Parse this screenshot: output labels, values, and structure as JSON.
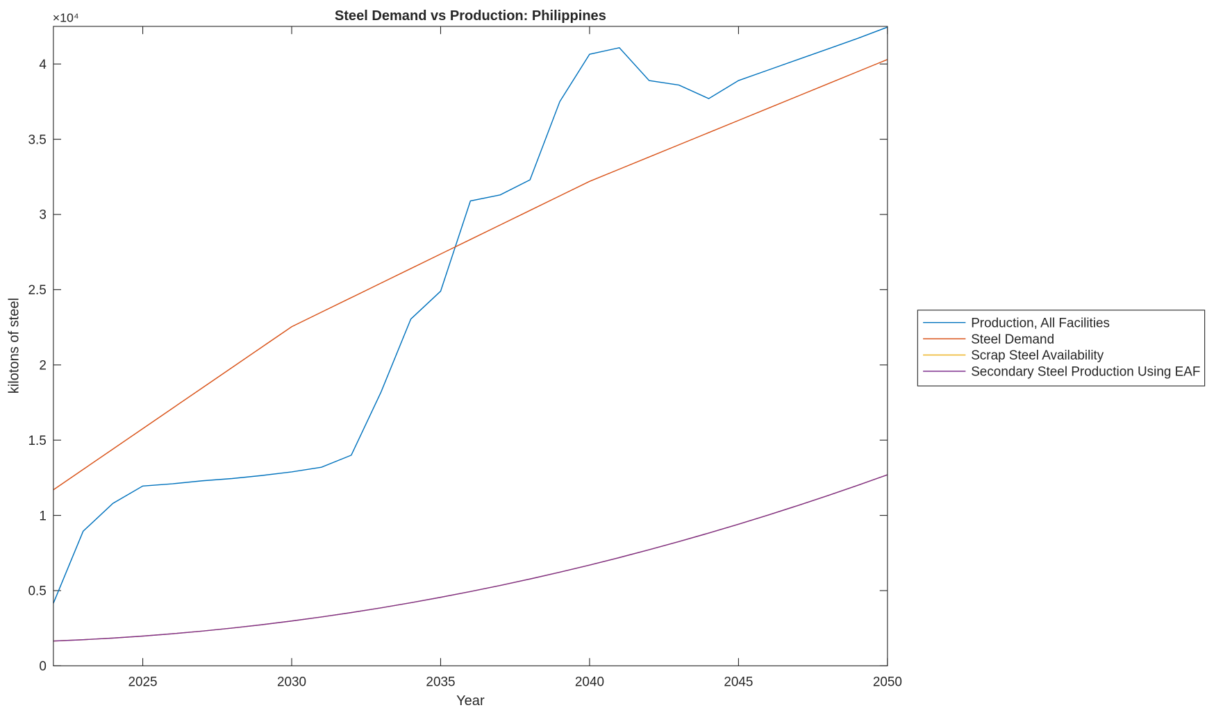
{
  "chart_data": {
    "type": "line",
    "title": "Steel Demand vs Production: Philippines",
    "x_label": "Year",
    "y_label": "kilotons of steel",
    "y_exponent_label": "×10⁴",
    "x": [
      2022,
      2023,
      2024,
      2025,
      2026,
      2027,
      2028,
      2029,
      2030,
      2031,
      2032,
      2033,
      2034,
      2035,
      2036,
      2037,
      2038,
      2039,
      2040,
      2041,
      2042,
      2043,
      2044,
      2045,
      2046,
      2047,
      2048,
      2049,
      2050
    ],
    "series": [
      {
        "name": "Production, All Facilities",
        "color": "#0072bd",
        "values": [
          4160,
          8950,
          10800,
          11950,
          12100,
          12300,
          12450,
          12650,
          12890,
          13200,
          14000,
          18200,
          23050,
          24900,
          30900,
          31300,
          32300,
          37500,
          40650,
          41080,
          38900,
          38600,
          37700,
          38900,
          39600,
          40300,
          41000,
          41700,
          42450
        ]
      },
      {
        "name": "Steel Demand",
        "color": "#d95319",
        "values": [
          11700,
          13055,
          14410,
          15765,
          17120,
          18475,
          19830,
          21185,
          22540,
          23506,
          24472,
          25438,
          26404,
          27370,
          28336,
          29302,
          30268,
          31234,
          32200,
          33010,
          33820,
          34630,
          35440,
          36250,
          37060,
          37870,
          38680,
          39490,
          40300
        ]
      },
      {
        "name": "Scrap Steel Availability",
        "color": "#edb120",
        "values": [
          1650,
          1736,
          1846,
          1978,
          2132,
          2310,
          2510,
          2734,
          2980,
          3249,
          3541,
          3856,
          4193,
          4554,
          4937,
          5343,
          5772,
          6224,
          6698,
          7196,
          7716,
          8259,
          8825,
          9414,
          10025,
          10660,
          11317,
          11998,
          12700
        ]
      },
      {
        "name": "Secondary Steel Production Using EAF",
        "color": "#7e2f8e",
        "values": [
          1650,
          1736,
          1846,
          1978,
          2132,
          2310,
          2510,
          2734,
          2980,
          3249,
          3541,
          3856,
          4193,
          4554,
          4937,
          5343,
          5772,
          6224,
          6698,
          7196,
          7716,
          8259,
          8825,
          9414,
          10025,
          10660,
          11317,
          11998,
          12700
        ]
      }
    ],
    "xlim": [
      2022,
      2050
    ],
    "xticks": [
      2025,
      2030,
      2035,
      2040,
      2045,
      2050
    ],
    "ylim": [
      0,
      42500
    ],
    "yticks": [
      0,
      {
        "value": 5000,
        "label": "0.5"
      },
      {
        "value": 10000,
        "label": "1"
      },
      {
        "value": 15000,
        "label": "1.5"
      },
      {
        "value": 20000,
        "label": "2"
      },
      {
        "value": 25000,
        "label": "2.5"
      },
      {
        "value": 30000,
        "label": "3"
      },
      {
        "value": 35000,
        "label": "3.5"
      },
      {
        "value": 40000,
        "label": "4"
      }
    ],
    "legend": "right"
  }
}
